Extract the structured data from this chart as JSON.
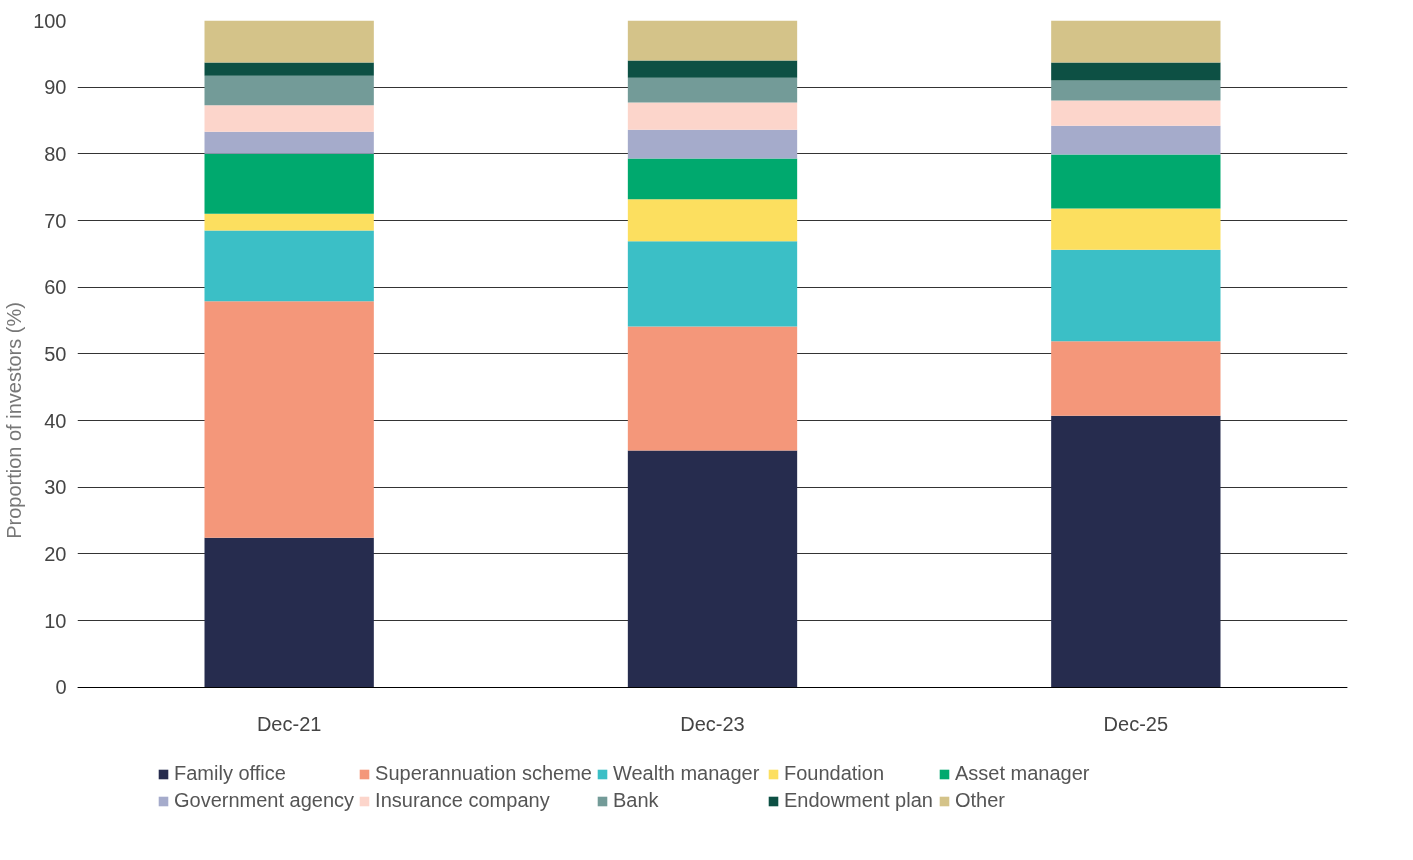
{
  "chart_data": {
    "type": "bar",
    "stacked": true,
    "ylabel": "Proportion of investors (%)",
    "categories": [
      "Dec-21",
      "Dec-23",
      "Dec-25"
    ],
    "series": [
      {
        "name": "Family office",
        "color": "#262c4e",
        "values": [
          22.4,
          35.5,
          40.7
        ]
      },
      {
        "name": "Superannuation scheme",
        "color": "#f4977a",
        "values": [
          35.5,
          18.6,
          11.2
        ]
      },
      {
        "name": "Wealth manager",
        "color": "#3bbfc6",
        "values": [
          10.6,
          12.8,
          13.7
        ]
      },
      {
        "name": "Foundation",
        "color": "#fcdf5f",
        "values": [
          2.5,
          6.3,
          6.2
        ]
      },
      {
        "name": "Asset manager",
        "color": "#00a96e",
        "values": [
          9.0,
          6.1,
          8.1
        ]
      },
      {
        "name": "Government agency",
        "color": "#a5abcb",
        "values": [
          3.3,
          4.3,
          4.3
        ]
      },
      {
        "name": "Insurance company",
        "color": "#fcd5cb",
        "values": [
          4.0,
          4.1,
          3.8
        ]
      },
      {
        "name": "Bank",
        "color": "#739b98",
        "values": [
          4.4,
          3.7,
          3.0
        ]
      },
      {
        "name": "Endowment plan",
        "color": "#0d5044",
        "values": [
          2.0,
          2.6,
          2.7
        ]
      },
      {
        "name": "Other",
        "color": "#d4c389",
        "values": [
          6.3,
          6.0,
          6.3
        ]
      }
    ],
    "ylim": [
      0,
      100
    ],
    "yticks": [
      0,
      10,
      20,
      30,
      40,
      50,
      60,
      70,
      80,
      90,
      100
    ],
    "grid": "y",
    "legend": "bottom"
  }
}
